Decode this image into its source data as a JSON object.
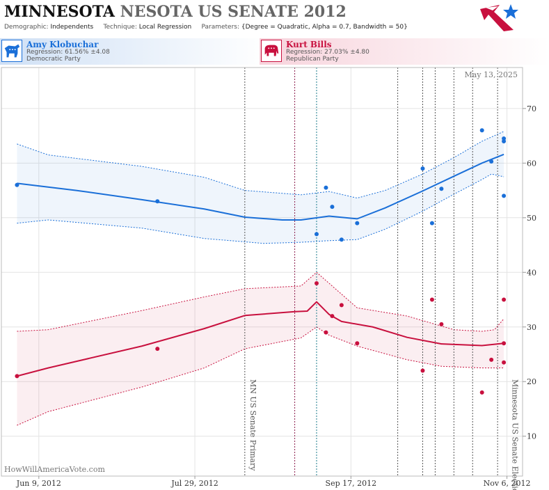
{
  "header": {
    "title_state": "MINNESOTA",
    "title_state_alt": "NESOTA",
    "title_race": "US SENATE 2012",
    "demographic_label": "Demographic:",
    "demographic": "Independents",
    "technique_label": "Technique:",
    "technique": "Local Regression",
    "parameters_label": "Parameters:",
    "parameters": "{Degree = Quadratic, Alpha = 0.7, Bandwidth = 50}"
  },
  "candidates": [
    {
      "name": "Amy Klobuchar",
      "regression": "Regression: 61.56% ±4.08",
      "party": "Democratic Party",
      "color": "#1a6fd8"
    },
    {
      "name": "Kurt Bills",
      "regression": "Regression: 27.03% ±4.80",
      "party": "Republican Party",
      "color": "#c8103e"
    }
  ],
  "watermark": "HowWillAmericaVote.com",
  "date_label": "May 13, 2025",
  "chart_data": {
    "type": "scatter",
    "x_ticks": [
      "Jun 9, 2012",
      "Jul 29, 2012",
      "Sep 17, 2012",
      "Nov 6, 2012"
    ],
    "xlim": [
      "2012-05-28",
      "2012-11-11"
    ],
    "y_ticks": [
      10,
      20,
      30,
      40,
      50,
      60,
      70
    ],
    "ylim": [
      2.7,
      77.5
    ],
    "y_axis_side": "right",
    "grid": true,
    "event_annotations": [
      {
        "date": "2012-08-14",
        "label": "MN US Senate Primary"
      },
      {
        "date": "2012-11-06",
        "label": "Minnesota US Senate Election"
      }
    ],
    "event_lines": [
      {
        "date": "2012-08-14",
        "color": "#555555"
      },
      {
        "date": "2012-08-30",
        "color": "#8a1a4a"
      },
      {
        "date": "2012-09-06",
        "color": "#1a7a8a"
      },
      {
        "date": "2012-10-02",
        "color": "#555555"
      },
      {
        "date": "2012-10-10",
        "color": "#555555"
      },
      {
        "date": "2012-10-14",
        "color": "#555555"
      },
      {
        "date": "2012-10-20",
        "color": "#555555"
      },
      {
        "date": "2012-10-26",
        "color": "#555555"
      },
      {
        "date": "2012-11-03",
        "color": "#555555"
      }
    ],
    "series": [
      {
        "name": "Amy Klobuchar",
        "color": "#1a6fd8",
        "points": [
          [
            "2012-06-02",
            56.0
          ],
          [
            "2012-07-17",
            53.0
          ],
          [
            "2012-09-06",
            47.0
          ],
          [
            "2012-09-09",
            55.5
          ],
          [
            "2012-09-11",
            52.0
          ],
          [
            "2012-09-14",
            46.0
          ],
          [
            "2012-09-19",
            49.0
          ],
          [
            "2012-10-10",
            59.0
          ],
          [
            "2012-10-13",
            49.0
          ],
          [
            "2012-10-16",
            55.3
          ],
          [
            "2012-10-29",
            66.0
          ],
          [
            "2012-11-01",
            60.3
          ],
          [
            "2012-11-05",
            64.0
          ],
          [
            "2012-11-05",
            64.5
          ],
          [
            "2012-11-05",
            54.0
          ]
        ],
        "fit": [
          [
            "2012-06-02",
            56.3
          ],
          [
            "2012-06-21",
            55.0
          ],
          [
            "2012-07-12",
            53.3
          ],
          [
            "2012-08-01",
            51.6
          ],
          [
            "2012-08-14",
            50.1
          ],
          [
            "2012-08-26",
            49.6
          ],
          [
            "2012-09-01",
            49.6
          ],
          [
            "2012-09-10",
            50.3
          ],
          [
            "2012-09-19",
            49.8
          ],
          [
            "2012-09-28",
            51.8
          ],
          [
            "2012-10-10",
            54.9
          ],
          [
            "2012-10-20",
            57.6
          ],
          [
            "2012-10-29",
            60.0
          ],
          [
            "2012-11-05",
            61.6
          ]
        ],
        "upper": [
          [
            "2012-06-02",
            63.5
          ],
          [
            "2012-06-12",
            61.5
          ],
          [
            "2012-07-12",
            59.4
          ],
          [
            "2012-08-01",
            57.4
          ],
          [
            "2012-08-14",
            55.0
          ],
          [
            "2012-09-01",
            54.2
          ],
          [
            "2012-09-10",
            54.8
          ],
          [
            "2012-09-19",
            53.6
          ],
          [
            "2012-09-28",
            55.0
          ],
          [
            "2012-10-10",
            58.0
          ],
          [
            "2012-10-20",
            61.0
          ],
          [
            "2012-10-29",
            64.0
          ],
          [
            "2012-11-05",
            65.8
          ]
        ],
        "lower": [
          [
            "2012-06-02",
            49.0
          ],
          [
            "2012-06-12",
            49.6
          ],
          [
            "2012-07-12",
            48.1
          ],
          [
            "2012-08-01",
            46.2
          ],
          [
            "2012-08-20",
            45.3
          ],
          [
            "2012-09-01",
            45.5
          ],
          [
            "2012-09-10",
            45.8
          ],
          [
            "2012-09-19",
            46.0
          ],
          [
            "2012-09-28",
            47.9
          ],
          [
            "2012-10-10",
            51.2
          ],
          [
            "2012-10-20",
            54.3
          ],
          [
            "2012-10-29",
            57.0
          ],
          [
            "2012-11-01",
            58.0
          ],
          [
            "2012-11-05",
            57.5
          ]
        ]
      },
      {
        "name": "Kurt Bills",
        "color": "#c8103e",
        "points": [
          [
            "2012-06-02",
            21.0
          ],
          [
            "2012-07-17",
            26.0
          ],
          [
            "2012-09-06",
            38.0
          ],
          [
            "2012-09-09",
            29.0
          ],
          [
            "2012-09-11",
            32.0
          ],
          [
            "2012-09-14",
            34.0
          ],
          [
            "2012-09-19",
            27.0
          ],
          [
            "2012-10-10",
            22.0
          ],
          [
            "2012-10-13",
            35.0
          ],
          [
            "2012-10-16",
            30.5
          ],
          [
            "2012-10-29",
            18.0
          ],
          [
            "2012-11-01",
            24.0
          ],
          [
            "2012-11-05",
            27.0
          ],
          [
            "2012-11-05",
            23.5
          ],
          [
            "2012-11-05",
            35.0
          ]
        ],
        "fit": [
          [
            "2012-06-02",
            21.0
          ],
          [
            "2012-06-12",
            22.5
          ],
          [
            "2012-07-12",
            26.5
          ],
          [
            "2012-08-01",
            29.7
          ],
          [
            "2012-08-14",
            32.1
          ],
          [
            "2012-08-30",
            32.8
          ],
          [
            "2012-09-03",
            32.9
          ],
          [
            "2012-09-06",
            34.6
          ],
          [
            "2012-09-10",
            32.3
          ],
          [
            "2012-09-14",
            31.0
          ],
          [
            "2012-09-24",
            30.0
          ],
          [
            "2012-10-05",
            28.1
          ],
          [
            "2012-10-16",
            26.9
          ],
          [
            "2012-10-29",
            26.6
          ],
          [
            "2012-11-05",
            27.0
          ]
        ],
        "upper": [
          [
            "2012-06-02",
            29.2
          ],
          [
            "2012-06-12",
            29.5
          ],
          [
            "2012-07-12",
            33.0
          ],
          [
            "2012-08-01",
            35.5
          ],
          [
            "2012-08-14",
            37.0
          ],
          [
            "2012-09-01",
            37.5
          ],
          [
            "2012-09-06",
            40.0
          ],
          [
            "2012-09-10",
            38.0
          ],
          [
            "2012-09-19",
            33.5
          ],
          [
            "2012-10-05",
            32.0
          ],
          [
            "2012-10-20",
            29.5
          ],
          [
            "2012-10-29",
            29.2
          ],
          [
            "2012-11-02",
            29.5
          ],
          [
            "2012-11-05",
            31.5
          ]
        ],
        "lower": [
          [
            "2012-06-02",
            12.0
          ],
          [
            "2012-06-12",
            14.5
          ],
          [
            "2012-07-12",
            19.0
          ],
          [
            "2012-08-01",
            22.5
          ],
          [
            "2012-08-14",
            26.0
          ],
          [
            "2012-09-01",
            28.0
          ],
          [
            "2012-09-06",
            30.0
          ],
          [
            "2012-09-10",
            28.5
          ],
          [
            "2012-09-19",
            26.5
          ],
          [
            "2012-10-05",
            24.0
          ],
          [
            "2012-10-16",
            22.8
          ],
          [
            "2012-10-29",
            22.5
          ],
          [
            "2012-11-05",
            22.5
          ]
        ]
      }
    ]
  }
}
